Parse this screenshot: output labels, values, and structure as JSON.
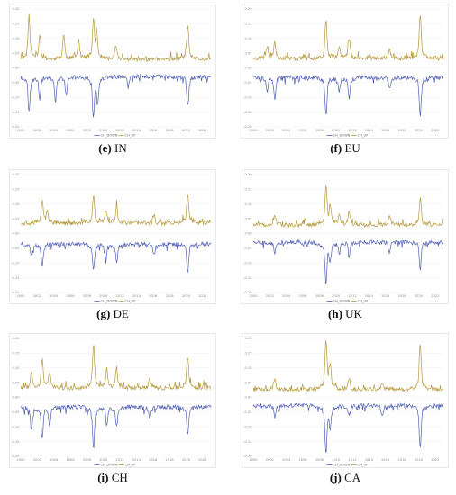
{
  "chart_data": [
    {
      "type": "line",
      "caption_letter": "(e)",
      "caption_name": "IN",
      "legend": [
        "CH_DOWN",
        "CH_UP"
      ],
      "x_ticks": [
        "2000",
        "2002",
        "2004",
        "2006",
        "2008",
        "2010",
        "2012",
        "2014",
        "2016",
        "2018",
        "2020",
        "2022"
      ],
      "y_ticks": [
        "0.20",
        "0.15",
        "0.10",
        "0.05",
        "0.00",
        "-0.05",
        "-0.10",
        "-0.15",
        "-0.20"
      ],
      "ylim": [
        -0.2,
        0.2
      ],
      "xlim": [
        2000,
        2023
      ],
      "up_color": "#b5993b",
      "down_color": "#4f5fb5",
      "up_base": 0.022,
      "down_base": -0.022,
      "spikes_up": [
        [
          2001.0,
          0.14
        ],
        [
          2002.3,
          0.09
        ],
        [
          2005.2,
          0.09
        ],
        [
          2007.0,
          0.075
        ],
        [
          2008.8,
          0.13
        ],
        [
          2009.2,
          0.085
        ],
        [
          2011.5,
          0.06
        ],
        [
          2020.2,
          0.11
        ]
      ],
      "spikes_down": [
        [
          2001.0,
          -0.12
        ],
        [
          2002.3,
          -0.08
        ],
        [
          2004.2,
          -0.09
        ],
        [
          2005.5,
          -0.075
        ],
        [
          2008.8,
          -0.13
        ],
        [
          2009.3,
          -0.09
        ],
        [
          2013.0,
          -0.05
        ],
        [
          2020.2,
          -0.1
        ]
      ],
      "noise_seed": 11
    },
    {
      "type": "line",
      "caption_letter": "(f)",
      "caption_name": "EU",
      "legend": [
        "CH_DOWN",
        "CH_UP"
      ],
      "x_ticks": [
        "2000",
        "2002",
        "2004",
        "2006",
        "2008",
        "2010",
        "2012",
        "2014",
        "2016",
        "2018",
        "2020",
        "2022"
      ],
      "y_ticks": [
        "0.20",
        "0.15",
        "0.10",
        "0.05",
        "0.00",
        "-0.05",
        "-0.10",
        "-0.15",
        "-0.20"
      ],
      "ylim": [
        -0.2,
        0.2
      ],
      "xlim": [
        2000,
        2023
      ],
      "up_color": "#b5993b",
      "down_color": "#4f5fb5",
      "up_base": 0.025,
      "down_base": -0.025,
      "spikes_up": [
        [
          2001.7,
          0.06
        ],
        [
          2002.6,
          0.07
        ],
        [
          2008.8,
          0.13
        ],
        [
          2010.4,
          0.06
        ],
        [
          2011.6,
          0.08
        ],
        [
          2016.5,
          0.05
        ],
        [
          2020.2,
          0.145
        ]
      ],
      "spikes_down": [
        [
          2001.7,
          -0.06
        ],
        [
          2002.6,
          -0.08
        ],
        [
          2008.8,
          -0.13
        ],
        [
          2010.4,
          -0.06
        ],
        [
          2011.6,
          -0.085
        ],
        [
          2016.5,
          -0.06
        ],
        [
          2020.2,
          -0.13
        ]
      ],
      "noise_seed": 23
    },
    {
      "type": "line",
      "caption_letter": "(g)",
      "caption_name": "DE",
      "legend": [
        "CH_DOWN",
        "CH_UP"
      ],
      "x_ticks": [
        "2000",
        "2002",
        "2004",
        "2006",
        "2008",
        "2010",
        "2012",
        "2014",
        "2016",
        "2018",
        "2020",
        "2022"
      ],
      "y_ticks": [
        "0.20",
        "0.15",
        "0.10",
        "0.05",
        "0.00",
        "-0.05",
        "-0.10",
        "-0.15",
        "-0.20"
      ],
      "ylim": [
        -0.2,
        0.2
      ],
      "xlim": [
        2000,
        2023
      ],
      "up_color": "#b5993b",
      "down_color": "#4f5fb5",
      "up_base": 0.028,
      "down_base": -0.028,
      "spikes_up": [
        [
          2002.6,
          0.085
        ],
        [
          2003.2,
          0.06
        ],
        [
          2008.8,
          0.1
        ],
        [
          2010.3,
          0.06
        ],
        [
          2011.6,
          0.075
        ],
        [
          2016.1,
          0.05
        ],
        [
          2020.2,
          0.11
        ]
      ],
      "spikes_down": [
        [
          2001.3,
          -0.06
        ],
        [
          2002.6,
          -0.085
        ],
        [
          2008.8,
          -0.1
        ],
        [
          2010.3,
          -0.065
        ],
        [
          2011.6,
          -0.08
        ],
        [
          2016.1,
          -0.06
        ],
        [
          2020.2,
          -0.11
        ]
      ],
      "noise_seed": 37
    },
    {
      "type": "line",
      "caption_letter": "(h)",
      "caption_name": "UK",
      "legend": [
        "CH_DOWN",
        "CH_UP"
      ],
      "x_ticks": [
        "2000",
        "2002",
        "2004",
        "2006",
        "2008",
        "2010",
        "2012",
        "2014",
        "2016",
        "2018",
        "2020",
        "2022"
      ],
      "y_ticks": [
        "0.20",
        "0.15",
        "0.10",
        "0.05",
        "0.00",
        "-0.05",
        "-0.10",
        "-0.15",
        "-0.20"
      ],
      "ylim": [
        -0.2,
        0.2
      ],
      "xlim": [
        2000,
        2023
      ],
      "up_color": "#b5993b",
      "down_color": "#4f5fb5",
      "up_base": 0.022,
      "down_base": -0.022,
      "spikes_up": [
        [
          2002.6,
          0.05
        ],
        [
          2008.8,
          0.13
        ],
        [
          2009.3,
          0.07
        ],
        [
          2010.4,
          0.05
        ],
        [
          2011.6,
          0.06
        ],
        [
          2016.5,
          0.05
        ],
        [
          2020.2,
          0.095
        ]
      ],
      "spikes_down": [
        [
          2002.6,
          -0.05
        ],
        [
          2008.8,
          -0.13
        ],
        [
          2009.3,
          -0.07
        ],
        [
          2010.4,
          -0.05
        ],
        [
          2011.6,
          -0.06
        ],
        [
          2016.5,
          -0.05
        ],
        [
          2020.2,
          -0.095
        ]
      ],
      "noise_seed": 51
    },
    {
      "type": "line",
      "caption_letter": "(i)",
      "caption_name": "CH",
      "legend": [
        "CH_DOWN",
        "CH_UP"
      ],
      "x_ticks": [
        "2000",
        "2002",
        "2004",
        "2006",
        "2008",
        "2010",
        "2012",
        "2014",
        "2016",
        "2018",
        "2020",
        "2022"
      ],
      "y_ticks": [
        "0.20",
        "0.15",
        "0.10",
        "0.05",
        "0.00",
        "-0.05",
        "-0.10",
        "-0.15",
        "-0.20"
      ],
      "ylim": [
        -0.2,
        0.2
      ],
      "xlim": [
        2000,
        2023
      ],
      "up_color": "#b5993b",
      "down_color": "#4f5fb5",
      "up_base": 0.025,
      "down_base": -0.025,
      "spikes_up": [
        [
          2001.3,
          0.07
        ],
        [
          2002.6,
          0.1
        ],
        [
          2003.5,
          0.065
        ],
        [
          2008.8,
          0.145
        ],
        [
          2010.4,
          0.07
        ],
        [
          2011.6,
          0.08
        ],
        [
          2015.6,
          0.05
        ],
        [
          2020.2,
          0.11
        ]
      ],
      "spikes_down": [
        [
          2001.3,
          -0.08
        ],
        [
          2002.6,
          -0.11
        ],
        [
          2003.5,
          -0.07
        ],
        [
          2008.8,
          -0.14
        ],
        [
          2010.4,
          -0.07
        ],
        [
          2011.6,
          -0.08
        ],
        [
          2015.6,
          -0.06
        ],
        [
          2020.2,
          -0.1
        ]
      ],
      "noise_seed": 67
    },
    {
      "type": "line",
      "caption_letter": "(j)",
      "caption_name": "CA",
      "legend": [
        "CH_DOWN",
        "CH_UP"
      ],
      "x_ticks": [
        "2000",
        "2002",
        "2004",
        "2006",
        "2008",
        "2010",
        "2012",
        "2014",
        "2016",
        "2018",
        "2020",
        "2022"
      ],
      "y_ticks": [
        "0.20",
        "0.15",
        "0.10",
        "0.05",
        "0.00",
        "-0.05",
        "-0.10",
        "-0.15",
        "-0.20"
      ],
      "ylim": [
        -0.2,
        0.2
      ],
      "xlim": [
        2000,
        2023
      ],
      "up_color": "#b5993b",
      "down_color": "#4f5fb5",
      "up_base": 0.02,
      "down_base": -0.02,
      "spikes_up": [
        [
          2002.6,
          0.05
        ],
        [
          2008.8,
          0.155
        ],
        [
          2009.3,
          0.08
        ],
        [
          2011.6,
          0.05
        ],
        [
          2015.6,
          0.04
        ],
        [
          2020.2,
          0.145
        ]
      ],
      "spikes_down": [
        [
          2002.6,
          -0.05
        ],
        [
          2008.8,
          -0.15
        ],
        [
          2009.3,
          -0.08
        ],
        [
          2011.6,
          -0.05
        ],
        [
          2015.6,
          -0.05
        ],
        [
          2020.2,
          -0.14
        ]
      ],
      "noise_seed": 79
    }
  ]
}
